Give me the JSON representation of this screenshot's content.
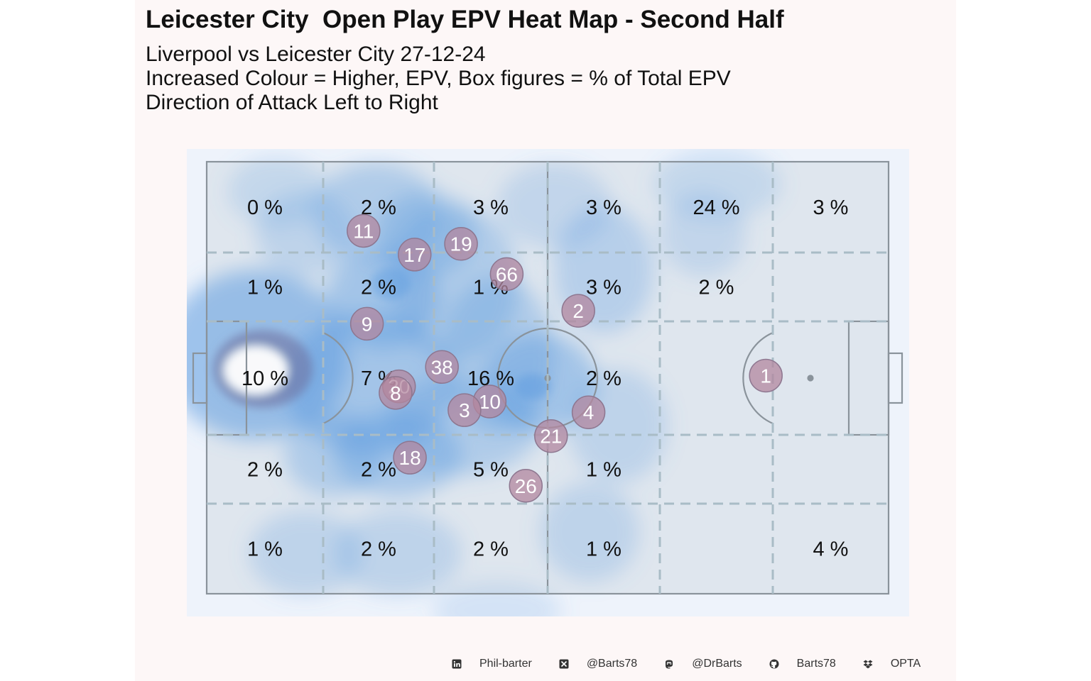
{
  "title": "Leicester City  Open Play EPV Heat Map - Second Half",
  "subtitle_lines": [
    "Liverpool vs Leicester City 27-12-24",
    "Increased Colour = Higher, EPV, Box figures = % of Total EPV",
    "Direction of Attack Left to Right"
  ],
  "colors": {
    "panel_background": "#fdf7f7",
    "pitch_fill": "#dfe6ee",
    "pitch_lines": "#8a939b",
    "grid_lines": "#a9bcc6",
    "heat_base": "#5b9be0",
    "heat_peak": "#6b6b9a",
    "player_marker": "#b3879f",
    "player_number": "#ffffff"
  },
  "chart_data": {
    "type": "heatmap",
    "grid_columns": 6,
    "grid_rows": 5,
    "zone_percentages": [
      [
        "0 %",
        "2 %",
        "3 %",
        "3 %",
        "24 %",
        "3 %"
      ],
      [
        "1 %",
        "2 %",
        "1 %",
        "3 %",
        "2 %",
        ""
      ],
      [
        "10 %",
        "7 %",
        "16 %",
        "2 %",
        "",
        ""
      ],
      [
        "2 %",
        "2 %",
        "5 %",
        "1 %",
        "",
        ""
      ],
      [
        "1 %",
        "2 %",
        "2 %",
        "1 %",
        "",
        "4 %"
      ]
    ],
    "players": [
      {
        "number": "11",
        "x": 23,
        "y": 84
      },
      {
        "number": "17",
        "x": 30.5,
        "y": 78.5
      },
      {
        "number": "19",
        "x": 37.3,
        "y": 81
      },
      {
        "number": "66",
        "x": 44,
        "y": 74
      },
      {
        "number": "9",
        "x": 23.5,
        "y": 62.5
      },
      {
        "number": "2",
        "x": 54.5,
        "y": 65.5
      },
      {
        "number": "38",
        "x": 34.5,
        "y": 52.5
      },
      {
        "number": "20",
        "x": 28.2,
        "y": 48
      },
      {
        "number": "8",
        "x": 27.7,
        "y": 46.5
      },
      {
        "number": "10",
        "x": 41.5,
        "y": 44.5
      },
      {
        "number": "3",
        "x": 37.8,
        "y": 42.5
      },
      {
        "number": "4",
        "x": 56,
        "y": 42
      },
      {
        "number": "21",
        "x": 50.5,
        "y": 36.5
      },
      {
        "number": "18",
        "x": 29.8,
        "y": 31.5
      },
      {
        "number": "26",
        "x": 46.8,
        "y": 25
      },
      {
        "number": "1",
        "x": 82,
        "y": 50.5
      }
    ]
  },
  "footer": {
    "items": [
      {
        "icon": "linkedin-icon",
        "text": "Phil-barter"
      },
      {
        "icon": "x-icon",
        "text": "@Barts78"
      },
      {
        "icon": "mastodon-icon",
        "text": "@DrBarts"
      },
      {
        "icon": "github-icon",
        "text": "Barts78"
      },
      {
        "icon": "dropbox-icon",
        "text": "OPTA"
      }
    ]
  }
}
